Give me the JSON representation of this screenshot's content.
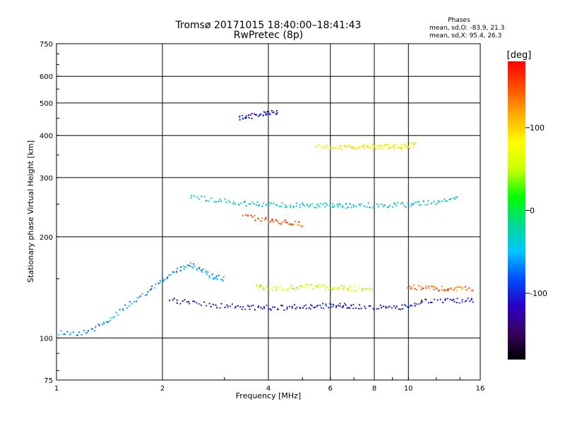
{
  "header": {
    "title_line1": "Tromsø 20171015 18:40:00–18:41:43",
    "title_line2": "RwPretec (8p)"
  },
  "phases_box": {
    "heading": "Phases",
    "line_o": "mean, sd,O: -83.9, 21.3",
    "line_x": "mean, sd,X: 95.4, 26.3"
  },
  "colorbar": {
    "unit_label": "[deg]",
    "tick_labels": [
      "100",
      "0",
      "-100"
    ],
    "tick_values": [
      100,
      0,
      -100
    ],
    "range": [
      -180,
      180
    ],
    "colors": [
      "#000000",
      "#3a0060",
      "#2a00c8",
      "#0050ff",
      "#00c8ff",
      "#00d890",
      "#00ff00",
      "#c8ff00",
      "#ffff00",
      "#ffb000",
      "#ff5000",
      "#ff0000"
    ]
  },
  "chart_data": {
    "type": "scatter",
    "xlabel": "Frequency [MHz]",
    "ylabel": "Stationary phase Virtual Height [km]",
    "x_scale": "log",
    "y_scale": "log",
    "xlim": [
      1,
      16
    ],
    "ylim": [
      75,
      750
    ],
    "x_ticks": [
      1,
      2,
      4,
      6,
      8,
      10,
      16
    ],
    "x_tick_labels": [
      "1",
      "2",
      "4",
      "6",
      "8",
      "10",
      "16"
    ],
    "y_ticks": [
      75,
      100,
      200,
      300,
      400,
      500,
      600,
      750
    ],
    "y_tick_labels": [
      "75",
      "100",
      "200",
      "300",
      "400",
      "500",
      "600",
      "750"
    ],
    "grid": true,
    "color_encoding": "phase [deg]",
    "traces": [
      {
        "x": [
          1.0,
          1.15,
          1.3,
          1.45,
          1.6,
          1.8,
          2.0,
          2.2,
          2.4,
          2.6,
          2.8,
          3.0
        ],
        "y": [
          104,
          103,
          107,
          116,
          125,
          136,
          148,
          160,
          166,
          158,
          152,
          150
        ],
        "phase": -60
      },
      {
        "x": [
          2.1,
          2.4,
          2.8,
          3.2,
          3.6,
          4.0,
          4.5,
          5.0,
          5.5,
          6.0,
          6.5,
          7.0,
          8.0,
          9.0,
          10.0,
          11.0,
          12.5,
          14.0,
          15.5
        ],
        "y": [
          130,
          127,
          125,
          124,
          123,
          123,
          123,
          124,
          124,
          125,
          125,
          124,
          123,
          123,
          124,
          128,
          129,
          129,
          129
        ],
        "phase": -110
      },
      {
        "x": [
          2.4,
          2.8,
          3.2,
          3.6,
          4.0,
          4.5,
          5.0,
          5.5,
          6.0,
          6.5,
          7.0,
          8.0,
          9.0,
          10.0,
          11.0,
          12.5,
          14.0
        ],
        "y": [
          262,
          258,
          253,
          250,
          249,
          248,
          248,
          248,
          248,
          247,
          247,
          248,
          248,
          249,
          252,
          255,
          260
        ],
        "phase": -40
      },
      {
        "x": [
          5.5,
          6.0,
          6.5,
          7.0,
          7.5,
          8.0,
          8.5,
          9.0,
          9.5,
          10.0,
          10.5
        ],
        "y": [
          370,
          370,
          369,
          369,
          370,
          370,
          370,
          371,
          371,
          372,
          376
        ],
        "phase": 80
      },
      {
        "x": [
          3.7,
          4.0,
          4.5,
          5.0,
          5.5,
          6.0,
          6.5,
          7.0,
          8.0
        ],
        "y": [
          142,
          141,
          141,
          142,
          142,
          141,
          141,
          140,
          140
        ],
        "phase": 60
      },
      {
        "x": [
          10.0,
          11.0,
          12.0,
          13.0,
          14.0,
          15.5
        ],
        "y": [
          142,
          141,
          140,
          140,
          140,
          140
        ],
        "phase": 140
      },
      {
        "x": [
          3.3,
          3.5,
          3.8,
          4.0,
          4.3
        ],
        "y": [
          450,
          455,
          462,
          465,
          470
        ],
        "phase": -110
      },
      {
        "x": [
          3.4,
          3.8,
          4.2,
          4.6,
          5.0
        ],
        "y": [
          230,
          226,
          222,
          220,
          218
        ],
        "phase": 150
      }
    ]
  }
}
